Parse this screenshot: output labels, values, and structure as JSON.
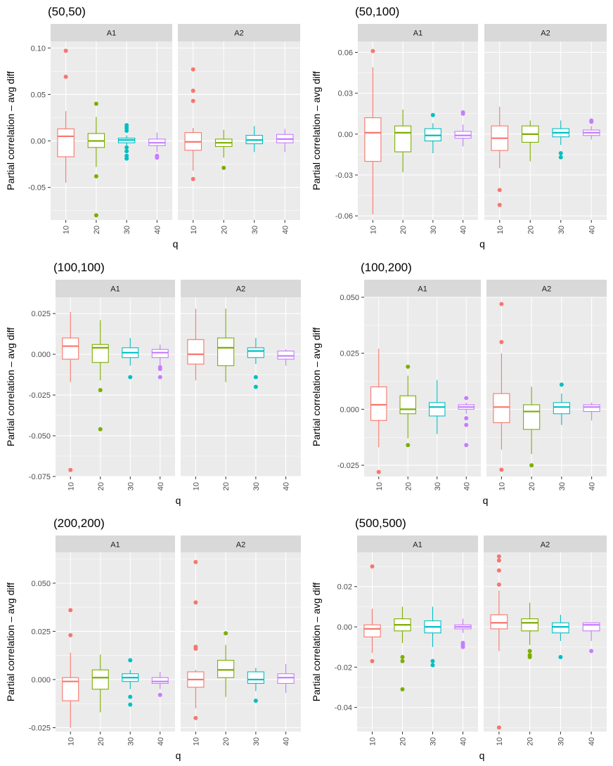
{
  "chart_data": {
    "type": "boxplot",
    "facets": [
      "A1",
      "A2"
    ],
    "categories": [
      "10",
      "20",
      "30",
      "40"
    ],
    "colors": [
      "#F8766D",
      "#7CAE00",
      "#00BFC4",
      "#C77CFF"
    ],
    "xlabel": "q",
    "ylabel": "Partial correlation – avg diff",
    "panels": [
      {
        "title": "(50,50)",
        "ylim": [
          -0.085,
          0.107
        ],
        "yticks": [
          -0.05,
          0.0,
          0.05,
          0.1
        ],
        "ytick_labels": [
          "-0.05",
          "0.00",
          "0.05",
          "0.10"
        ],
        "facets": [
          {
            "name": "A1",
            "boxes": [
              {
                "q": "10",
                "min": -0.045,
                "q1": -0.017,
                "median": 0.005,
                "q3": 0.013,
                "max": 0.032,
                "outliers": [
                  0.069,
                  0.097
                ]
              },
              {
                "q": "20",
                "min": -0.028,
                "q1": -0.007,
                "median": 0.0,
                "q3": 0.008,
                "max": 0.026,
                "outliers": [
                  0.04,
                  -0.038,
                  -0.08
                ]
              },
              {
                "q": "30",
                "min": -0.005,
                "q1": -0.002,
                "median": 0.001,
                "q3": 0.003,
                "max": 0.006,
                "outliers": [
                  0.017,
                  0.014,
                  0.011,
                  -0.007,
                  -0.011,
                  -0.016,
                  -0.019
                ]
              },
              {
                "q": "40",
                "min": -0.012,
                "q1": -0.005,
                "median": -0.002,
                "q3": 0.002,
                "max": 0.009,
                "outliers": [
                  -0.016,
                  -0.018
                ]
              }
            ]
          },
          {
            "name": "A2",
            "boxes": [
              {
                "q": "10",
                "min": -0.032,
                "q1": -0.01,
                "median": -0.001,
                "q3": 0.009,
                "max": 0.014,
                "outliers": [
                  0.077,
                  0.054,
                  0.043,
                  -0.041
                ]
              },
              {
                "q": "20",
                "min": -0.018,
                "q1": -0.006,
                "median": -0.002,
                "q3": 0.002,
                "max": 0.012,
                "outliers": [
                  -0.029
                ]
              },
              {
                "q": "30",
                "min": -0.012,
                "q1": -0.003,
                "median": 0.001,
                "q3": 0.006,
                "max": 0.016,
                "outliers": []
              },
              {
                "q": "40",
                "min": -0.012,
                "q1": -0.002,
                "median": 0.002,
                "q3": 0.007,
                "max": 0.013,
                "outliers": []
              }
            ]
          }
        ]
      },
      {
        "title": "(50,100)",
        "ylim": [
          -0.063,
          0.068
        ],
        "yticks": [
          -0.06,
          -0.03,
          0.0,
          0.03,
          0.06
        ],
        "ytick_labels": [
          "-0.06",
          "-0.03",
          "0.00",
          "0.03",
          "0.06"
        ],
        "facets": [
          {
            "name": "A1",
            "boxes": [
              {
                "q": "10",
                "min": -0.059,
                "q1": -0.02,
                "median": 0.001,
                "q3": 0.012,
                "max": 0.049,
                "outliers": [
                  0.061
                ]
              },
              {
                "q": "20",
                "min": -0.028,
                "q1": -0.013,
                "median": 0.001,
                "q3": 0.006,
                "max": 0.018,
                "outliers": []
              },
              {
                "q": "30",
                "min": -0.014,
                "q1": -0.005,
                "median": -0.001,
                "q3": 0.004,
                "max": 0.008,
                "outliers": [
                  0.014
                ]
              },
              {
                "q": "40",
                "min": -0.009,
                "q1": -0.003,
                "median": -0.001,
                "q3": 0.002,
                "max": 0.007,
                "outliers": [
                  0.016,
                  0.015
                ]
              }
            ]
          },
          {
            "name": "A2",
            "boxes": [
              {
                "q": "10",
                "min": -0.025,
                "q1": -0.012,
                "median": -0.003,
                "q3": 0.006,
                "max": 0.02,
                "outliers": [
                  -0.041,
                  -0.052
                ]
              },
              {
                "q": "20",
                "min": -0.02,
                "q1": -0.006,
                "median": 0.0,
                "q3": 0.006,
                "max": 0.01,
                "outliers": []
              },
              {
                "q": "30",
                "min": -0.008,
                "q1": -0.002,
                "median": 0.001,
                "q3": 0.004,
                "max": 0.01,
                "outliers": [
                  -0.014,
                  -0.017
                ]
              },
              {
                "q": "40",
                "min": -0.004,
                "q1": -0.001,
                "median": 0.001,
                "q3": 0.003,
                "max": 0.006,
                "outliers": [
                  0.01,
                  0.009
                ]
              }
            ]
          }
        ]
      },
      {
        "title": "(100,100)",
        "ylim": [
          -0.075,
          0.035
        ],
        "yticks": [
          -0.075,
          -0.05,
          -0.025,
          0.0,
          0.025
        ],
        "ytick_labels": [
          "-0.075",
          "-0.050",
          "-0.025",
          "0.000",
          "0.025"
        ],
        "facets": [
          {
            "name": "A1",
            "boxes": [
              {
                "q": "10",
                "min": -0.017,
                "q1": -0.003,
                "median": 0.005,
                "q3": 0.01,
                "max": 0.026,
                "outliers": [
                  -0.071
                ]
              },
              {
                "q": "20",
                "min": -0.016,
                "q1": -0.005,
                "median": 0.004,
                "q3": 0.006,
                "max": 0.021,
                "outliers": [
                  -0.022,
                  -0.046
                ]
              },
              {
                "q": "30",
                "min": -0.007,
                "q1": -0.002,
                "median": 0.001,
                "q3": 0.004,
                "max": 0.01,
                "outliers": [
                  -0.014
                ]
              },
              {
                "q": "40",
                "min": -0.007,
                "q1": -0.002,
                "median": 0.001,
                "q3": 0.003,
                "max": 0.006,
                "outliers": [
                  -0.008,
                  -0.009,
                  -0.014
                ]
              }
            ]
          },
          {
            "name": "A2",
            "boxes": [
              {
                "q": "10",
                "min": -0.016,
                "q1": -0.006,
                "median": 0.0,
                "q3": 0.009,
                "max": 0.028,
                "outliers": []
              },
              {
                "q": "20",
                "min": -0.017,
                "q1": -0.007,
                "median": 0.004,
                "q3": 0.01,
                "max": 0.028,
                "outliers": []
              },
              {
                "q": "30",
                "min": -0.006,
                "q1": -0.002,
                "median": 0.002,
                "q3": 0.004,
                "max": 0.01,
                "outliers": [
                  -0.014,
                  -0.02
                ]
              },
              {
                "q": "40",
                "min": -0.007,
                "q1": -0.003,
                "median": -0.001,
                "q3": 0.002,
                "max": 0.003,
                "outliers": []
              }
            ]
          }
        ]
      },
      {
        "title": "(100,200)",
        "ylim": [
          -0.03,
          0.05
        ],
        "yticks": [
          -0.025,
          0.0,
          0.025,
          0.05
        ],
        "ytick_labels": [
          "-0.025",
          "0.000",
          "0.025",
          "0.050"
        ],
        "facets": [
          {
            "name": "A1",
            "boxes": [
              {
                "q": "10",
                "min": -0.017,
                "q1": -0.005,
                "median": 0.002,
                "q3": 0.01,
                "max": 0.027,
                "outliers": [
                  -0.028
                ]
              },
              {
                "q": "20",
                "min": -0.013,
                "q1": -0.002,
                "median": 0.0,
                "q3": 0.006,
                "max": 0.015,
                "outliers": [
                  0.019,
                  -0.016
                ]
              },
              {
                "q": "30",
                "min": -0.011,
                "q1": -0.003,
                "median": 0.001,
                "q3": 0.003,
                "max": 0.013,
                "outliers": []
              },
              {
                "q": "40",
                "min": -0.002,
                "q1": 0.0,
                "median": 0.001,
                "q3": 0.002,
                "max": 0.003,
                "outliers": [
                  0.005,
                  -0.004,
                  -0.007,
                  -0.016
                ]
              }
            ]
          },
          {
            "name": "A2",
            "boxes": [
              {
                "q": "10",
                "min": -0.018,
                "q1": -0.006,
                "median": 0.001,
                "q3": 0.007,
                "max": 0.025,
                "outliers": [
                  0.047,
                  0.03,
                  -0.027
                ]
              },
              {
                "q": "20",
                "min": -0.02,
                "q1": -0.009,
                "median": -0.001,
                "q3": 0.002,
                "max": 0.01,
                "outliers": [
                  -0.025
                ]
              },
              {
                "q": "30",
                "min": -0.007,
                "q1": -0.002,
                "median": 0.001,
                "q3": 0.003,
                "max": 0.007,
                "outliers": [
                  0.011
                ]
              },
              {
                "q": "40",
                "min": -0.005,
                "q1": -0.001,
                "median": 0.001,
                "q3": 0.002,
                "max": 0.003,
                "outliers": []
              }
            ]
          }
        ]
      },
      {
        "title": "(200,200)",
        "ylim": [
          -0.027,
          0.066
        ],
        "yticks": [
          -0.025,
          0.0,
          0.025,
          0.05
        ],
        "ytick_labels": [
          "-0.025",
          "0.000",
          "0.025",
          "0.050"
        ],
        "facets": [
          {
            "name": "A1",
            "boxes": [
              {
                "q": "10",
                "min": -0.025,
                "q1": -0.011,
                "median": -0.001,
                "q3": 0.001,
                "max": 0.014,
                "outliers": [
                  0.036,
                  0.023
                ]
              },
              {
                "q": "20",
                "min": -0.017,
                "q1": -0.005,
                "median": 0.001,
                "q3": 0.005,
                "max": 0.013,
                "outliers": []
              },
              {
                "q": "30",
                "min": -0.005,
                "q1": -0.001,
                "median": 0.001,
                "q3": 0.003,
                "max": 0.005,
                "outliers": [
                  0.01,
                  -0.009,
                  -0.013
                ]
              },
              {
                "q": "40",
                "min": -0.005,
                "q1": -0.002,
                "median": -0.001,
                "q3": 0.001,
                "max": 0.004,
                "outliers": [
                  -0.008
                ]
              }
            ]
          },
          {
            "name": "A2",
            "boxes": [
              {
                "q": "10",
                "min": -0.015,
                "q1": -0.004,
                "median": 0.0,
                "q3": 0.004,
                "max": 0.005,
                "outliers": [
                  0.061,
                  0.04,
                  0.017,
                  0.016,
                  -0.02
                ]
              },
              {
                "q": "20",
                "min": -0.009,
                "q1": 0.001,
                "median": 0.005,
                "q3": 0.01,
                "max": 0.018,
                "outliers": [
                  0.024
                ]
              },
              {
                "q": "30",
                "min": -0.006,
                "q1": -0.002,
                "median": 0.0,
                "q3": 0.004,
                "max": 0.006,
                "outliers": [
                  -0.011
                ]
              },
              {
                "q": "40",
                "min": -0.007,
                "q1": -0.002,
                "median": 0.001,
                "q3": 0.003,
                "max": 0.008,
                "outliers": []
              }
            ]
          }
        ]
      },
      {
        "title": "(500,500)",
        "ylim": [
          -0.052,
          0.037
        ],
        "yticks": [
          -0.04,
          -0.02,
          0.0,
          0.02
        ],
        "ytick_labels": [
          "-0.04",
          "-0.02",
          "0.00",
          "0.02"
        ],
        "facets": [
          {
            "name": "A1",
            "boxes": [
              {
                "q": "10",
                "min": -0.013,
                "q1": -0.005,
                "median": -0.001,
                "q3": 0.001,
                "max": 0.009,
                "outliers": [
                  0.03,
                  -0.017
                ]
              },
              {
                "q": "20",
                "min": -0.008,
                "q1": -0.002,
                "median": 0.001,
                "q3": 0.004,
                "max": 0.01,
                "outliers": [
                  -0.015,
                  -0.017,
                  -0.031
                ]
              },
              {
                "q": "30",
                "min": -0.01,
                "q1": -0.003,
                "median": 0.0,
                "q3": 0.003,
                "max": 0.01,
                "outliers": [
                  -0.017,
                  -0.019
                ]
              },
              {
                "q": "40",
                "min": -0.003,
                "q1": -0.001,
                "median": 0.0,
                "q3": 0.001,
                "max": 0.004,
                "outliers": [
                  -0.008,
                  -0.009,
                  -0.01
                ]
              }
            ]
          },
          {
            "name": "A2",
            "boxes": [
              {
                "q": "10",
                "min": -0.012,
                "q1": -0.001,
                "median": 0.002,
                "q3": 0.006,
                "max": 0.018,
                "outliers": [
                  0.035,
                  0.033,
                  0.028,
                  0.021,
                  -0.05
                ]
              },
              {
                "q": "20",
                "min": -0.009,
                "q1": -0.002,
                "median": 0.002,
                "q3": 0.004,
                "max": 0.012,
                "outliers": [
                  -0.012,
                  -0.014,
                  -0.015
                ]
              },
              {
                "q": "30",
                "min": -0.007,
                "q1": -0.003,
                "median": 0.0,
                "q3": 0.002,
                "max": 0.006,
                "outliers": [
                  -0.015
                ]
              },
              {
                "q": "40",
                "min": -0.007,
                "q1": -0.002,
                "median": 0.001,
                "q3": 0.002,
                "max": 0.002,
                "outliers": [
                  -0.012
                ]
              }
            ]
          }
        ]
      }
    ]
  }
}
